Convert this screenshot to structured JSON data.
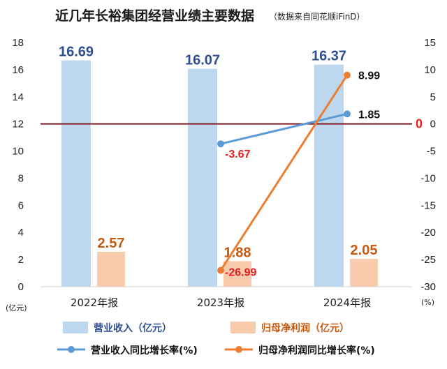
{
  "chart_data": {
    "type": "bar+line",
    "title": "近几年长裕集团经营业绩主要数据",
    "subtitle": "（数据来自同花顺iFinD）",
    "categories": [
      "2022年报",
      "2023年报",
      "2024年报"
    ],
    "left_axis": {
      "unit": "(亿元)",
      "ylim": [
        0,
        18
      ],
      "ticks": [
        "0",
        "2",
        "4",
        "6",
        "8",
        "10",
        "12",
        "14",
        "16",
        "18"
      ]
    },
    "right_axis": {
      "unit": "(%)",
      "ylim": [
        -30,
        15
      ],
      "ticks": [
        "-30",
        "-25",
        "-20",
        "-15",
        "-10",
        "-5",
        "0",
        "5",
        "10",
        "15"
      ]
    },
    "bar_series": [
      {
        "name": "营业收入（亿元）",
        "values": [
          16.69,
          16.07,
          16.37
        ],
        "labels": [
          "16.69",
          "16.07",
          "16.37"
        ],
        "color": "#bdd7ee",
        "label_color": "#2e4f8f"
      },
      {
        "name": "归母净利润（亿元）",
        "values": [
          2.57,
          1.88,
          2.05
        ],
        "labels": [
          "2.57",
          "1.88",
          "2.05"
        ],
        "color": "#f8cbad",
        "label_color": "#c55a11"
      }
    ],
    "line_series": [
      {
        "name": "营业收入同比增长率(%)",
        "x": [
          "2023年报",
          "2024年报"
        ],
        "values": [
          -3.67,
          1.85
        ],
        "labels": [
          "-3.67",
          "1.85"
        ],
        "color": "#5b9bd5",
        "label_colors": [
          "#e02020",
          "#111111"
        ]
      },
      {
        "name": "归母净利润同比增长率(%)",
        "x": [
          "2023年报",
          "2024年报"
        ],
        "values": [
          -26.99,
          8.99
        ],
        "labels": [
          "-26.99",
          "8.99"
        ],
        "color": "#ed7d31",
        "label_colors": [
          "#e02020",
          "#111111"
        ]
      }
    ],
    "reference_line": {
      "axis": "right",
      "value": 0,
      "label": "0",
      "color": "#7b1c24",
      "label_color": "#e02020"
    },
    "grid": false,
    "legend": "bottom"
  }
}
